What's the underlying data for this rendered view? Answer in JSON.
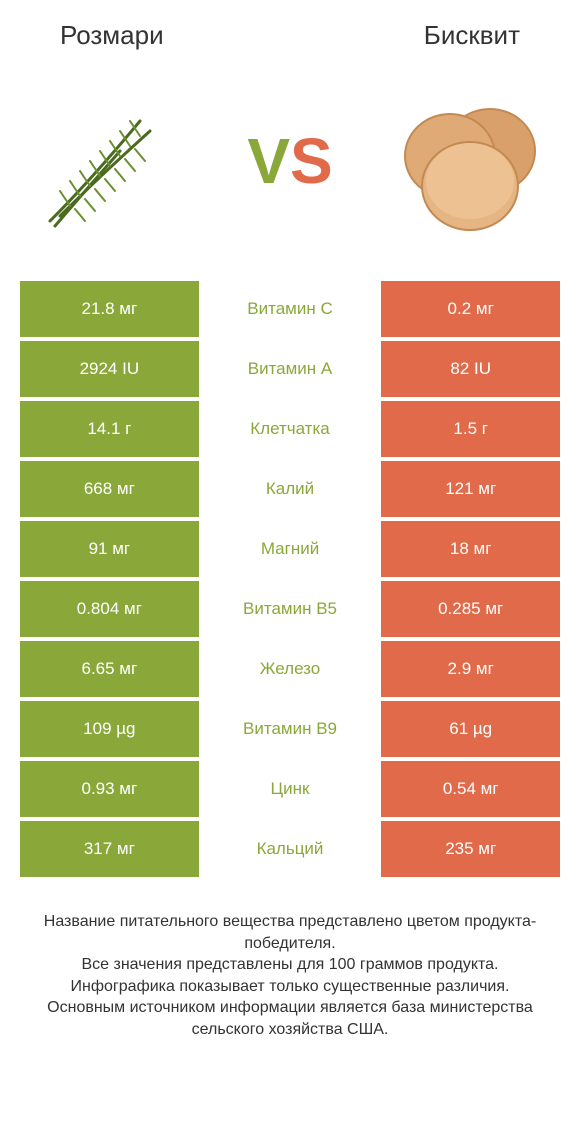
{
  "colors": {
    "left": "#8aa83a",
    "right": "#e06a4a",
    "text": "#333333",
    "cell_text": "#ffffff",
    "bg": "#ffffff"
  },
  "header": {
    "left_title": "Розмари",
    "right_title": "Бисквит"
  },
  "hero": {
    "vs_v": "V",
    "vs_s": "S"
  },
  "rows": [
    {
      "left": "21.8 мг",
      "label": "Витамин C",
      "right": "0.2 мг",
      "winner": "left"
    },
    {
      "left": "2924 IU",
      "label": "Витамин A",
      "right": "82 IU",
      "winner": "left"
    },
    {
      "left": "14.1 г",
      "label": "Клетчатка",
      "right": "1.5 г",
      "winner": "left"
    },
    {
      "left": "668 мг",
      "label": "Калий",
      "right": "121 мг",
      "winner": "left"
    },
    {
      "left": "91 мг",
      "label": "Магний",
      "right": "18 мг",
      "winner": "left"
    },
    {
      "left": "0.804 мг",
      "label": "Витамин B5",
      "right": "0.285 мг",
      "winner": "left"
    },
    {
      "left": "6.65 мг",
      "label": "Железо",
      "right": "2.9 мг",
      "winner": "left"
    },
    {
      "left": "109 µg",
      "label": "Витамин B9",
      "right": "61 µg",
      "winner": "left"
    },
    {
      "left": "0.93 мг",
      "label": "Цинк",
      "right": "0.54 мг",
      "winner": "left"
    },
    {
      "left": "317 мг",
      "label": "Кальций",
      "right": "235 мг",
      "winner": "left"
    }
  ],
  "footer": {
    "line1": "Название питательного вещества представлено цветом продукта-победителя.",
    "line2": "Все значения представлены для 100 граммов продукта.",
    "line3": "Инфографика показывает только существенные различия.",
    "line4": "Основным источником информации является база министерства сельского хозяйства США."
  }
}
